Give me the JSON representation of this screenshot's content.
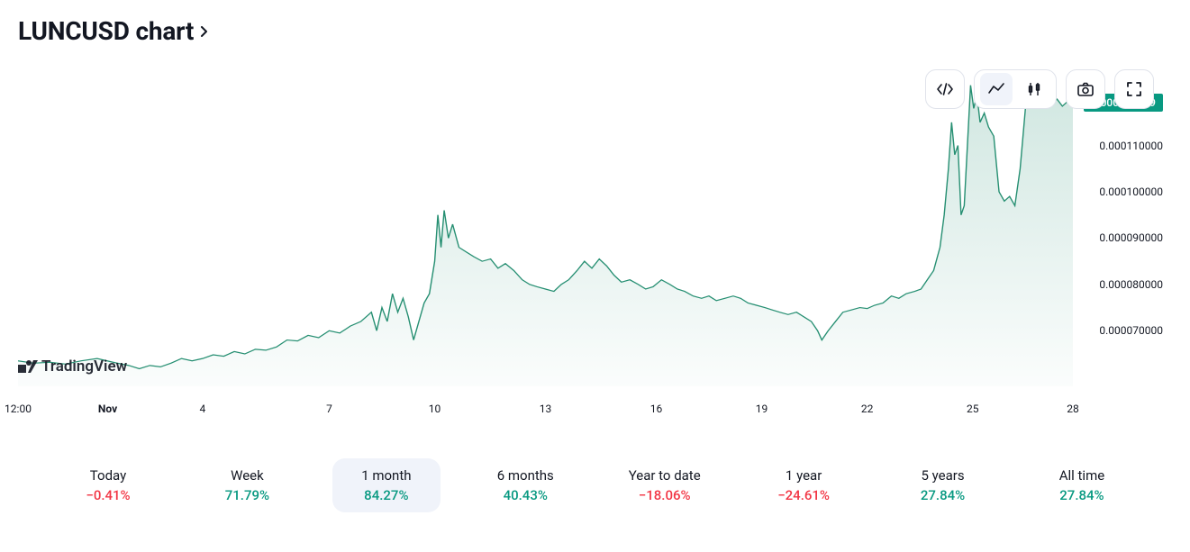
{
  "title": "LUNCUSD chart",
  "colors": {
    "line": "#268f72",
    "fill_top": "rgba(38,143,114,0.22)",
    "fill_bottom": "rgba(38,143,114,0.02)",
    "badge_bg": "#089981",
    "text": "#131722",
    "border": "#e0e3eb",
    "active_bg": "#f0f3fa",
    "pos": "#089981",
    "neg": "#f23645",
    "bg": "#ffffff"
  },
  "chart": {
    "type": "area",
    "current_price_label": "0.000119199",
    "current_price_value": 0.000119199,
    "y_axis": {
      "ticks": [
        {
          "value": 7e-05,
          "label": "0.000070000"
        },
        {
          "value": 8e-05,
          "label": "0.000080000"
        },
        {
          "value": 9e-05,
          "label": "0.000090000"
        },
        {
          "value": 0.0001,
          "label": "0.000100000"
        },
        {
          "value": 0.00011,
          "label": "0.000110000"
        }
      ],
      "min": 5.8e-05,
      "max": 0.000128
    },
    "x_axis": {
      "ticks": [
        {
          "t": 0.0,
          "label": "12:00",
          "bold": false
        },
        {
          "t": 0.085,
          "label": "Nov",
          "bold": true
        },
        {
          "t": 0.175,
          "label": "4",
          "bold": false
        },
        {
          "t": 0.295,
          "label": "7",
          "bold": false
        },
        {
          "t": 0.395,
          "label": "10",
          "bold": false
        },
        {
          "t": 0.5,
          "label": "13",
          "bold": false
        },
        {
          "t": 0.605,
          "label": "16",
          "bold": false
        },
        {
          "t": 0.705,
          "label": "19",
          "bold": false
        },
        {
          "t": 0.805,
          "label": "22",
          "bold": false
        },
        {
          "t": 0.905,
          "label": "25",
          "bold": false
        },
        {
          "t": 1.0,
          "label": "28",
          "bold": false
        }
      ]
    },
    "series": [
      [
        0.0,
        6.35e-05
      ],
      [
        0.015,
        6.3e-05
      ],
      [
        0.03,
        6.32e-05
      ],
      [
        0.045,
        6.28e-05
      ],
      [
        0.06,
        6.35e-05
      ],
      [
        0.075,
        6.4e-05
      ],
      [
        0.09,
        6.32e-05
      ],
      [
        0.105,
        6.25e-05
      ],
      [
        0.115,
        6.18e-05
      ],
      [
        0.125,
        6.25e-05
      ],
      [
        0.135,
        6.22e-05
      ],
      [
        0.145,
        6.3e-05
      ],
      [
        0.155,
        6.4e-05
      ],
      [
        0.165,
        6.35e-05
      ],
      [
        0.175,
        6.4e-05
      ],
      [
        0.185,
        6.48e-05
      ],
      [
        0.195,
        6.45e-05
      ],
      [
        0.205,
        6.55e-05
      ],
      [
        0.215,
        6.5e-05
      ],
      [
        0.225,
        6.6e-05
      ],
      [
        0.235,
        6.58e-05
      ],
      [
        0.245,
        6.65e-05
      ],
      [
        0.255,
        6.8e-05
      ],
      [
        0.265,
        6.78e-05
      ],
      [
        0.275,
        6.9e-05
      ],
      [
        0.285,
        6.85e-05
      ],
      [
        0.295,
        7e-05
      ],
      [
        0.305,
        6.95e-05
      ],
      [
        0.315,
        7.1e-05
      ],
      [
        0.325,
        7.2e-05
      ],
      [
        0.335,
        7.4e-05
      ],
      [
        0.34,
        7e-05
      ],
      [
        0.345,
        7.5e-05
      ],
      [
        0.35,
        7.2e-05
      ],
      [
        0.355,
        7.8e-05
      ],
      [
        0.36,
        7.4e-05
      ],
      [
        0.365,
        7.7e-05
      ],
      [
        0.37,
        7.3e-05
      ],
      [
        0.375,
        6.8e-05
      ],
      [
        0.38,
        7.2e-05
      ],
      [
        0.385,
        7.6e-05
      ],
      [
        0.39,
        7.8e-05
      ],
      [
        0.395,
        8.5e-05
      ],
      [
        0.398,
        9.5e-05
      ],
      [
        0.401,
        8.8e-05
      ],
      [
        0.404,
        9.6e-05
      ],
      [
        0.408,
        9e-05
      ],
      [
        0.412,
        9.3e-05
      ],
      [
        0.418,
        8.8e-05
      ],
      [
        0.425,
        8.7e-05
      ],
      [
        0.432,
        8.6e-05
      ],
      [
        0.44,
        8.5e-05
      ],
      [
        0.448,
        8.55e-05
      ],
      [
        0.455,
        8.35e-05
      ],
      [
        0.462,
        8.45e-05
      ],
      [
        0.47,
        8.3e-05
      ],
      [
        0.478,
        8.1e-05
      ],
      [
        0.485,
        8e-05
      ],
      [
        0.492,
        7.95e-05
      ],
      [
        0.5,
        7.9e-05
      ],
      [
        0.508,
        7.85e-05
      ],
      [
        0.515,
        8e-05
      ],
      [
        0.522,
        8.1e-05
      ],
      [
        0.53,
        8.3e-05
      ],
      [
        0.537,
        8.5e-05
      ],
      [
        0.544,
        8.35e-05
      ],
      [
        0.551,
        8.55e-05
      ],
      [
        0.558,
        8.4e-05
      ],
      [
        0.565,
        8.2e-05
      ],
      [
        0.572,
        8.05e-05
      ],
      [
        0.58,
        8.1e-05
      ],
      [
        0.588,
        8e-05
      ],
      [
        0.595,
        7.9e-05
      ],
      [
        0.602,
        7.95e-05
      ],
      [
        0.61,
        8.1e-05
      ],
      [
        0.618,
        8e-05
      ],
      [
        0.625,
        7.9e-05
      ],
      [
        0.632,
        7.85e-05
      ],
      [
        0.64,
        7.75e-05
      ],
      [
        0.648,
        7.7e-05
      ],
      [
        0.655,
        7.75e-05
      ],
      [
        0.662,
        7.65e-05
      ],
      [
        0.67,
        7.7e-05
      ],
      [
        0.678,
        7.75e-05
      ],
      [
        0.685,
        7.7e-05
      ],
      [
        0.692,
        7.6e-05
      ],
      [
        0.7,
        7.55e-05
      ],
      [
        0.708,
        7.5e-05
      ],
      [
        0.715,
        7.45e-05
      ],
      [
        0.722,
        7.4e-05
      ],
      [
        0.73,
        7.35e-05
      ],
      [
        0.738,
        7.4e-05
      ],
      [
        0.745,
        7.3e-05
      ],
      [
        0.752,
        7.2e-05
      ],
      [
        0.758,
        7e-05
      ],
      [
        0.762,
        6.8e-05
      ],
      [
        0.768,
        7e-05
      ],
      [
        0.775,
        7.2e-05
      ],
      [
        0.782,
        7.4e-05
      ],
      [
        0.79,
        7.45e-05
      ],
      [
        0.798,
        7.5e-05
      ],
      [
        0.805,
        7.48e-05
      ],
      [
        0.812,
        7.55e-05
      ],
      [
        0.82,
        7.6e-05
      ],
      [
        0.828,
        7.75e-05
      ],
      [
        0.835,
        7.7e-05
      ],
      [
        0.842,
        7.8e-05
      ],
      [
        0.85,
        7.85e-05
      ],
      [
        0.856,
        7.9e-05
      ],
      [
        0.862,
        8.1e-05
      ],
      [
        0.868,
        8.3e-05
      ],
      [
        0.874,
        8.8e-05
      ],
      [
        0.878,
        9.5e-05
      ],
      [
        0.882,
        0.000105
      ],
      [
        0.885,
        0.000115
      ],
      [
        0.888,
        0.000108
      ],
      [
        0.891,
        0.00011
      ],
      [
        0.894,
        9.5e-05
      ],
      [
        0.897,
        9.7e-05
      ],
      [
        0.9,
        0.00011
      ],
      [
        0.903,
        0.000123
      ],
      [
        0.906,
        0.000118
      ],
      [
        0.909,
        0.000121
      ],
      [
        0.912,
        0.000115
      ],
      [
        0.916,
        0.000117
      ],
      [
        0.92,
        0.000114
      ],
      [
        0.925,
        0.000112
      ],
      [
        0.93,
        0.0001
      ],
      [
        0.935,
        9.8e-05
      ],
      [
        0.94,
        9.9e-05
      ],
      [
        0.945,
        9.7e-05
      ],
      [
        0.95,
        0.000105
      ],
      [
        0.955,
        0.000118
      ],
      [
        0.96,
        0.000125
      ],
      [
        0.965,
        0.000122
      ],
      [
        0.97,
        0.00012
      ],
      [
        0.975,
        0.000121
      ],
      [
        0.98,
        0.000119
      ],
      [
        0.985,
        0.00012
      ],
      [
        0.99,
        0.0001185
      ],
      [
        0.995,
        0.0001195
      ],
      [
        1.0,
        0.0001192
      ]
    ],
    "line_width": 1.2,
    "watermark": "TradingView"
  },
  "toolbar": {
    "items": [
      {
        "name": "embed-icon",
        "active": false
      },
      {
        "name": "chart-type-group",
        "active": false
      },
      {
        "name": "snapshot-icon",
        "active": false
      },
      {
        "name": "fullscreen-icon",
        "active": false
      }
    ],
    "chart_types": [
      {
        "name": "area-chart-icon",
        "active": true
      },
      {
        "name": "candlestick-icon",
        "active": false
      }
    ]
  },
  "ranges": [
    {
      "label": "Today",
      "value": "−0.41%",
      "sign": "neg",
      "active": false
    },
    {
      "label": "Week",
      "value": "71.79%",
      "sign": "pos",
      "active": false
    },
    {
      "label": "1 month",
      "value": "84.27%",
      "sign": "pos",
      "active": true
    },
    {
      "label": "6 months",
      "value": "40.43%",
      "sign": "pos",
      "active": false
    },
    {
      "label": "Year to date",
      "value": "−18.06%",
      "sign": "neg",
      "active": false
    },
    {
      "label": "1 year",
      "value": "−24.61%",
      "sign": "neg",
      "active": false
    },
    {
      "label": "5 years",
      "value": "27.84%",
      "sign": "pos",
      "active": false
    },
    {
      "label": "All time",
      "value": "27.84%",
      "sign": "pos",
      "active": false
    }
  ]
}
